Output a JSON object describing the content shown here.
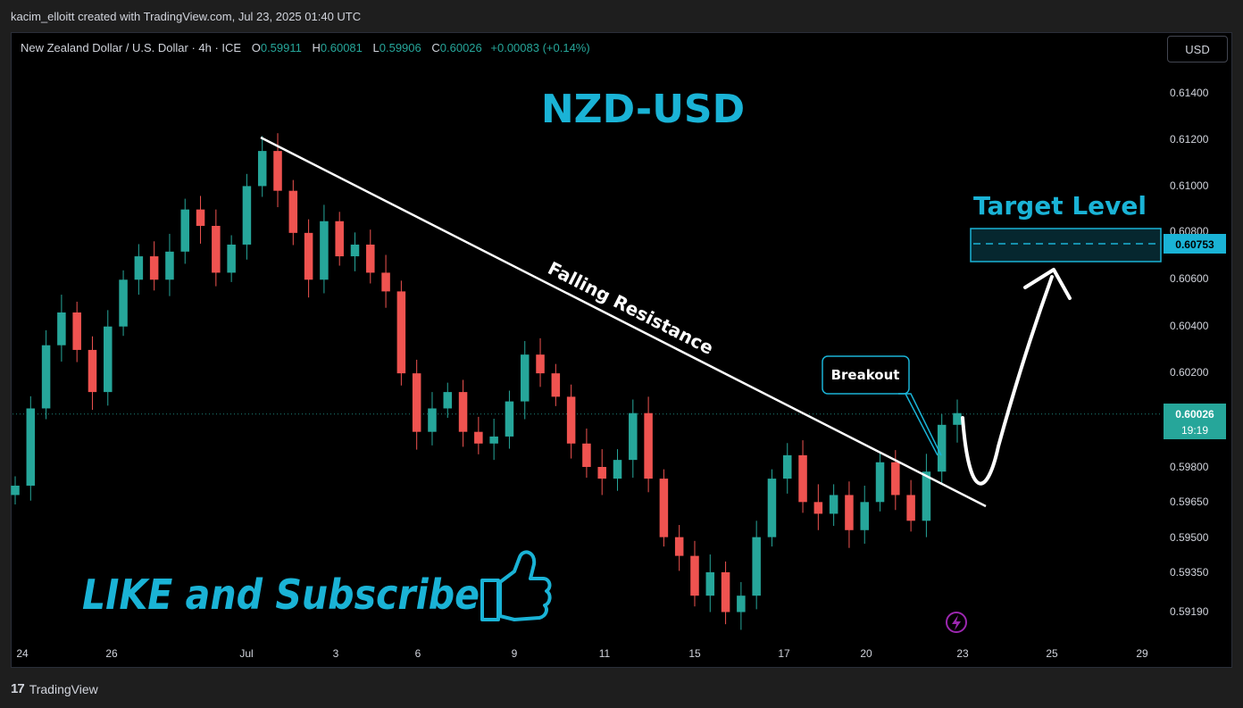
{
  "credit": "kacim_elloitt created with TradingView.com, Jul 23, 2025 01:40 UTC",
  "header": {
    "symbol": "New Zealand Dollar / U.S. Dollar · 4h · ICE",
    "o_label": "O",
    "o_value": "0.59911",
    "h_label": "H",
    "h_value": "0.60081",
    "l_label": "L",
    "l_value": "0.59906",
    "c_label": "C",
    "c_value": "0.60026",
    "change": "+0.00083 (+0.14%)"
  },
  "currency_button": "USD",
  "footer": {
    "brand": "TradingView",
    "mark": "17"
  },
  "colors": {
    "up": "#26a69a",
    "down": "#ef5350",
    "accent": "#1ab3d6",
    "line": "#ffffff"
  },
  "chart_data": {
    "type": "candlestick",
    "title": "NZD-USD",
    "timeframe": "4h",
    "x_ticks": [
      "24",
      "26",
      "Jul",
      "3",
      "6",
      "9",
      "11",
      "15",
      "17",
      "20",
      "23",
      "25",
      "29"
    ],
    "y_ticks": [
      "0.61400",
      "0.61200",
      "0.61000",
      "0.60800",
      "0.60600",
      "0.60400",
      "0.60200",
      "0.59800",
      "0.59650",
      "0.59500",
      "0.59350",
      "0.59190"
    ],
    "y_range": [
      0.591,
      0.615
    ],
    "last_price": "0.60026",
    "countdown": "19:19",
    "target_price": "0.60753",
    "target_zone": [
      0.6068,
      0.6082
    ],
    "annotations": {
      "trendline_label": "Falling Resistance",
      "breakout_label": "Breakout",
      "target_label": "Target Level",
      "promo": "LIKE and Subscribe"
    },
    "approx_close_path": [
      0.5972,
      0.6005,
      0.6032,
      0.6046,
      0.603,
      0.6012,
      0.604,
      0.606,
      0.607,
      0.606,
      0.6072,
      0.609,
      0.6083,
      0.6063,
      0.6075,
      0.61,
      0.6115,
      0.6098,
      0.608,
      0.606,
      0.6085,
      0.607,
      0.6075,
      0.6063,
      0.6055,
      0.602,
      0.5995,
      0.6005,
      0.6012,
      0.5995,
      0.599,
      0.5993,
      0.6008,
      0.6028,
      0.602,
      0.601,
      0.599,
      0.598,
      0.5975,
      0.5983,
      0.6003,
      0.5975,
      0.595,
      0.5942,
      0.5925,
      0.5935,
      0.5918,
      0.5925,
      0.595,
      0.5975,
      0.5985,
      0.5965,
      0.596,
      0.5968,
      0.5953,
      0.5965,
      0.5982,
      0.5968,
      0.5957,
      0.5978,
      0.5998,
      0.6003
    ]
  }
}
